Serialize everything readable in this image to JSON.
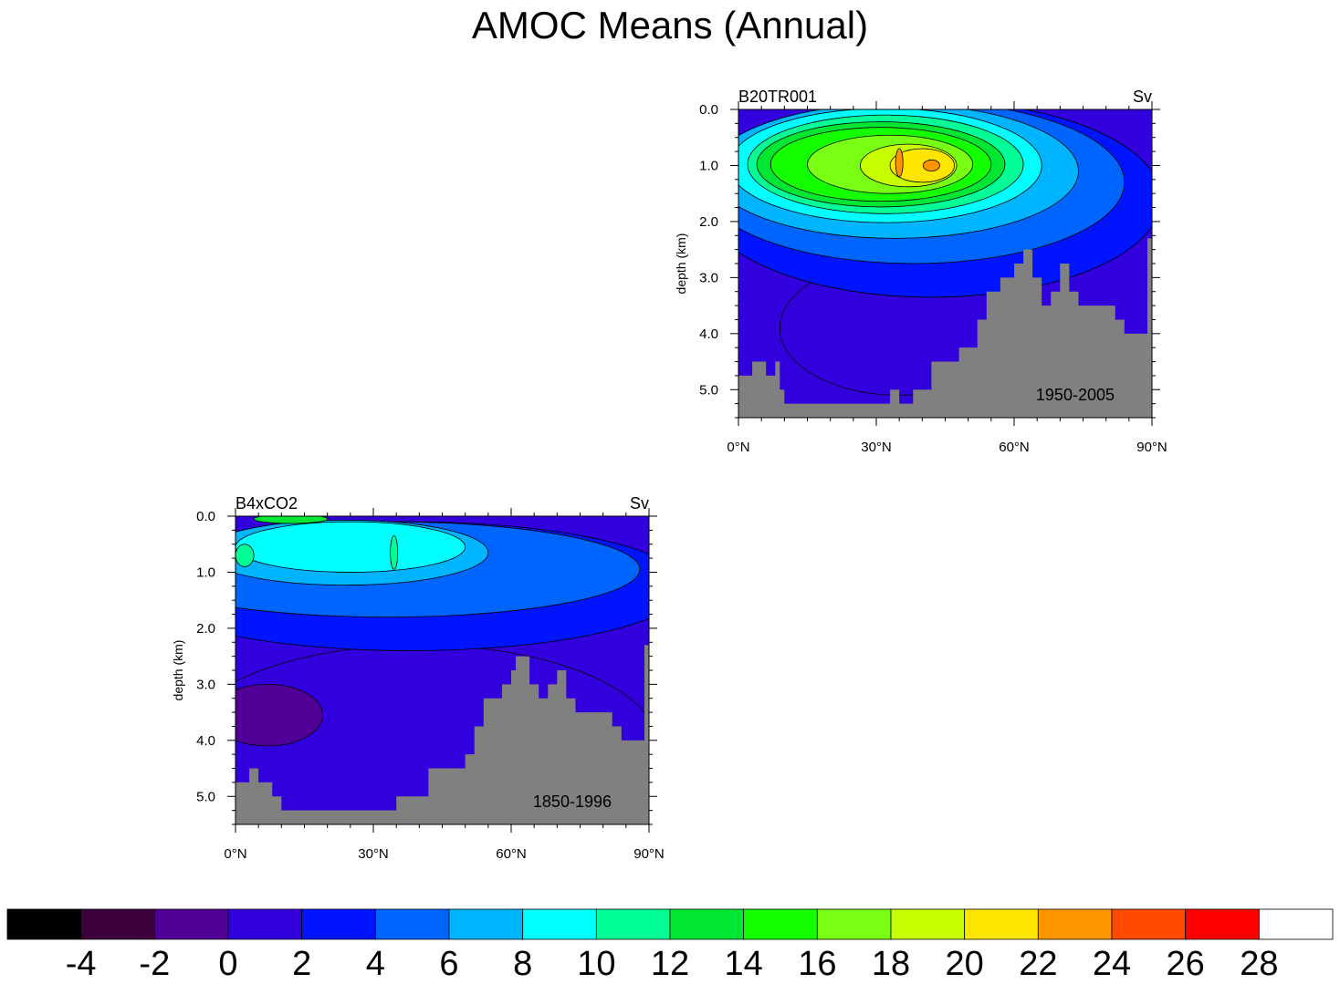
{
  "title": "AMOC Means (Annual)",
  "chart_data": [
    {
      "type": "heatmap",
      "panel": "B20TR001",
      "units": "Sv",
      "period": "1950-2005",
      "ylabel": "depth (km)",
      "x_ticks": [
        0,
        30,
        60,
        90
      ],
      "x_tick_labels": [
        "0°N",
        "30°N",
        "60°N",
        "90°N"
      ],
      "xlim": [
        0,
        90
      ],
      "y_ticks": [
        0,
        1,
        2,
        3,
        4,
        5
      ],
      "y_tick_labels": [
        "0.0",
        "1.0",
        "2.0",
        "3.0",
        "4.0",
        "5.0"
      ],
      "ylim": [
        5.5,
        0
      ],
      "bathymetry": [
        [
          0,
          4.75
        ],
        [
          3,
          4.75
        ],
        [
          3,
          4.5
        ],
        [
          6,
          4.5
        ],
        [
          6,
          4.75
        ],
        [
          8,
          4.75
        ],
        [
          8,
          4.5
        ],
        [
          9,
          4.5
        ],
        [
          9,
          5.0
        ],
        [
          10,
          5.0
        ],
        [
          10,
          5.25
        ],
        [
          33,
          5.25
        ],
        [
          33,
          5.0
        ],
        [
          35,
          5.0
        ],
        [
          35,
          5.25
        ],
        [
          38,
          5.25
        ],
        [
          38,
          5.0
        ],
        [
          42,
          5.0
        ],
        [
          42,
          4.5
        ],
        [
          48,
          4.5
        ],
        [
          48,
          4.25
        ],
        [
          52,
          4.25
        ],
        [
          52,
          3.75
        ],
        [
          54,
          3.75
        ],
        [
          54,
          3.25
        ],
        [
          57,
          3.25
        ],
        [
          57,
          3.0
        ],
        [
          60,
          3.0
        ],
        [
          60,
          2.75
        ],
        [
          62,
          2.75
        ],
        [
          62,
          2.5
        ],
        [
          64,
          2.5
        ],
        [
          64,
          3.0
        ],
        [
          66,
          3.0
        ],
        [
          66,
          3.5
        ],
        [
          68,
          3.5
        ],
        [
          68,
          3.25
        ],
        [
          70,
          3.25
        ],
        [
          70,
          2.75
        ],
        [
          72,
          2.75
        ],
        [
          72,
          3.25
        ],
        [
          74,
          3.25
        ],
        [
          74,
          3.5
        ],
        [
          82,
          3.5
        ],
        [
          82,
          3.75
        ],
        [
          84,
          3.75
        ],
        [
          84,
          4.0
        ],
        [
          89,
          4.0
        ],
        [
          89,
          2.3
        ],
        [
          90,
          2.3
        ]
      ],
      "contours": [
        {
          "value": 0,
          "cx": 35,
          "cy": 3.9,
          "rx": 26,
          "ry": 1.2
        },
        {
          "value": 2,
          "cx": 42,
          "cy": 1.6,
          "rx": 50,
          "ry": 1.75
        },
        {
          "value": 4,
          "cx": 38,
          "cy": 1.3,
          "rx": 46,
          "ry": 1.45
        },
        {
          "value": 6,
          "cx": 34,
          "cy": 1.1,
          "rx": 40,
          "ry": 1.2
        },
        {
          "value": 8,
          "cx": 32,
          "cy": 1.0,
          "rx": 34,
          "ry": 1.02
        },
        {
          "value": 10,
          "cx": 32,
          "cy": 0.98,
          "rx": 30,
          "ry": 0.88
        },
        {
          "value": 12,
          "cx": 31,
          "cy": 0.98,
          "rx": 27,
          "ry": 0.76
        },
        {
          "value": 14,
          "cx": 31,
          "cy": 0.98,
          "rx": 24,
          "ry": 0.66
        },
        {
          "value": 16,
          "cx": 33,
          "cy": 0.98,
          "rx": 18,
          "ry": 0.52
        },
        {
          "value": 18,
          "cx": 37,
          "cy": 1.0,
          "rx": 10.5,
          "ry": 0.38
        },
        {
          "value": 20,
          "cx": 40,
          "cy": 1.0,
          "rx": 7,
          "ry": 0.3
        },
        {
          "value": 22,
          "cx": 35,
          "cy": 0.95,
          "rx": 0.8,
          "ry": 0.25
        },
        {
          "value": 22,
          "cx": 42,
          "cy": 1.0,
          "rx": 1.8,
          "ry": 0.1
        }
      ]
    },
    {
      "type": "heatmap",
      "panel": "B4xCO2",
      "units": "Sv",
      "period": "1850-1996",
      "ylabel": "depth (km)",
      "x_ticks": [
        0,
        30,
        60,
        90
      ],
      "x_tick_labels": [
        "0°N",
        "30°N",
        "60°N",
        "90°N"
      ],
      "xlim": [
        0,
        90
      ],
      "y_ticks": [
        0,
        1,
        2,
        3,
        4,
        5
      ],
      "y_tick_labels": [
        "0.0",
        "1.0",
        "2.0",
        "3.0",
        "4.0",
        "5.0"
      ],
      "ylim": [
        5.5,
        0
      ],
      "bathymetry": [
        [
          0,
          4.75
        ],
        [
          3,
          4.75
        ],
        [
          3,
          4.5
        ],
        [
          5,
          4.5
        ],
        [
          5,
          4.75
        ],
        [
          8,
          4.75
        ],
        [
          8,
          5.0
        ],
        [
          10,
          5.0
        ],
        [
          10,
          5.25
        ],
        [
          35,
          5.25
        ],
        [
          35,
          5.0
        ],
        [
          42,
          5.0
        ],
        [
          42,
          4.5
        ],
        [
          50,
          4.5
        ],
        [
          50,
          4.25
        ],
        [
          52,
          4.25
        ],
        [
          52,
          3.75
        ],
        [
          54,
          3.75
        ],
        [
          54,
          3.25
        ],
        [
          58,
          3.25
        ],
        [
          58,
          3.0
        ],
        [
          60,
          3.0
        ],
        [
          60,
          2.75
        ],
        [
          61,
          2.75
        ],
        [
          61,
          2.5
        ],
        [
          64,
          2.5
        ],
        [
          64,
          3.0
        ],
        [
          66,
          3.0
        ],
        [
          66,
          3.25
        ],
        [
          68,
          3.25
        ],
        [
          68,
          3.0
        ],
        [
          70,
          3.0
        ],
        [
          70,
          2.75
        ],
        [
          72,
          2.75
        ],
        [
          72,
          3.25
        ],
        [
          74,
          3.25
        ],
        [
          74,
          3.5
        ],
        [
          82,
          3.5
        ],
        [
          82,
          3.75
        ],
        [
          84,
          3.75
        ],
        [
          84,
          4.0
        ],
        [
          89,
          4.0
        ],
        [
          89,
          2.3
        ],
        [
          90,
          2.3
        ]
      ],
      "contours": [
        {
          "value": 0,
          "cx": 40,
          "cy": 4.1,
          "rx": 52,
          "ry": 1.8
        },
        {
          "value": 2,
          "cx": 38,
          "cy": 1.25,
          "rx": 60,
          "ry": 1.15
        },
        {
          "value": 4,
          "cx": 33,
          "cy": 0.95,
          "rx": 55,
          "ry": 0.85
        },
        {
          "value": 6,
          "cx": 24,
          "cy": 0.65,
          "rx": 31,
          "ry": 0.58
        },
        {
          "value": 8,
          "cx": 25,
          "cy": 0.55,
          "rx": 25,
          "ry": 0.45
        },
        {
          "value": 10,
          "cx": 2,
          "cy": 0.7,
          "rx": 2,
          "ry": 0.2
        },
        {
          "value": 10,
          "cx": 34.5,
          "cy": 0.65,
          "rx": 0.8,
          "ry": 0.3
        },
        {
          "value": 12,
          "cx": 12,
          "cy": 0.05,
          "rx": 8,
          "ry": 0.08
        },
        {
          "value": -2,
          "cx": 7,
          "cy": 3.55,
          "rx": 12,
          "ry": 0.55
        }
      ]
    }
  ],
  "colorbar": {
    "levels": [
      -4,
      -2,
      0,
      2,
      4,
      6,
      8,
      10,
      12,
      14,
      16,
      18,
      20,
      22,
      24,
      26,
      28
    ],
    "labels": [
      "-4",
      "-2",
      "0",
      "2",
      "4",
      "6",
      "8",
      "10",
      "12",
      "14",
      "16",
      "18",
      "20",
      "22",
      "24",
      "26",
      "28"
    ],
    "colors": [
      "#000000",
      "#3c003c",
      "#500096",
      "#3200dc",
      "#0014ff",
      "#0064ff",
      "#00b4ff",
      "#00ffff",
      "#00ff96",
      "#00e632",
      "#14ff00",
      "#78ff14",
      "#c8ff00",
      "#ffe600",
      "#ff9600",
      "#ff4b00",
      "#ff0000",
      "#ffffff"
    ]
  }
}
